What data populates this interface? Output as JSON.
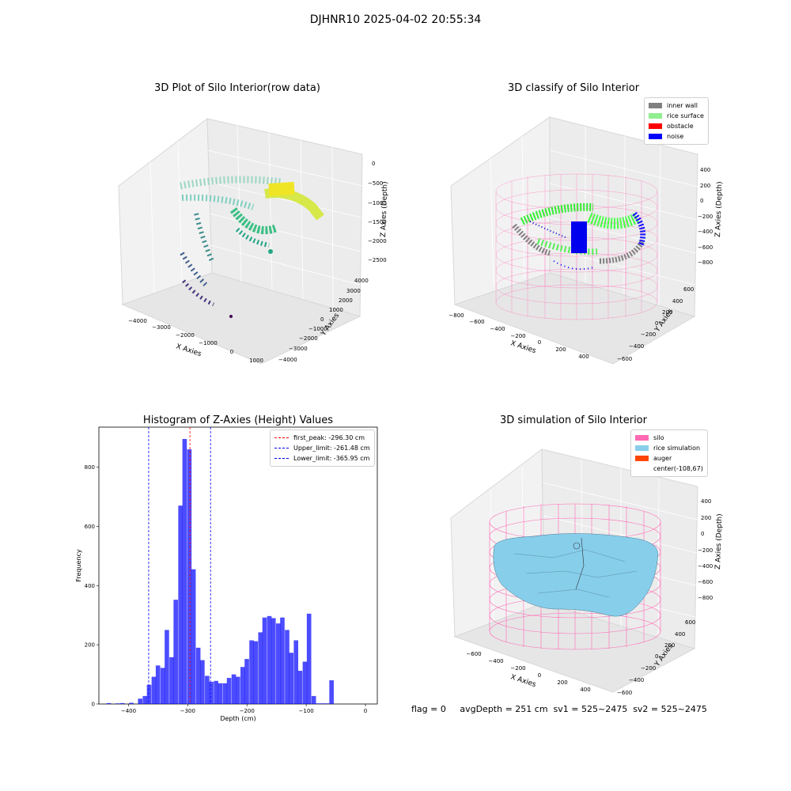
{
  "figure": {
    "title": "DJHNR10 2025-04-02 20:55:34"
  },
  "panel1": {
    "title": "3D Plot of Silo Interior(row data)",
    "xlabel": "X Axies",
    "ylabel": "Y Axies",
    "zlabel": "Z Axies (Depth)",
    "xticks": [
      "−4000",
      "−3000",
      "−2000",
      "−1000",
      "0",
      "1000"
    ],
    "yticks": [
      "4000",
      "3000",
      "2000",
      "1000",
      "0",
      "−1000",
      "−2000",
      "−3000",
      "−4000"
    ],
    "zticks": [
      "0",
      "−500",
      "−1000",
      "−1500",
      "−2000",
      "−2500"
    ]
  },
  "panel2": {
    "title": "3D classify of Silo Interior",
    "xlabel": "X Axies",
    "ylabel": "Y Axies",
    "zlabel": "Z Axies (Depth)",
    "xticks": [
      "−800",
      "−600",
      "−400",
      "−200",
      "0",
      "200",
      "400"
    ],
    "yticks": [
      "600",
      "400",
      "200",
      "0",
      "−200",
      "−400",
      "−600"
    ],
    "zticks": [
      "400",
      "200",
      "0",
      "−200",
      "−400",
      "−600",
      "−800"
    ],
    "legend": [
      {
        "label": "inner wall",
        "color": "#808080"
      },
      {
        "label": "rice surface",
        "color": "#90ee90"
      },
      {
        "label": "obstacle",
        "color": "#ff0000"
      },
      {
        "label": "noise",
        "color": "#0000ff"
      }
    ]
  },
  "panel4": {
    "title": "3D simulation of Silo Interior",
    "xlabel": "X Axies",
    "ylabel": "Y Axies",
    "zlabel": "Z Axies (Depth)",
    "xticks": [
      "−600",
      "−400",
      "−200",
      "0",
      "200",
      "400"
    ],
    "yticks": [
      "600",
      "400",
      "200",
      "0",
      "−200",
      "−400",
      "−600"
    ],
    "zticks": [
      "400",
      "200",
      "0",
      "−200",
      "−400",
      "−600",
      "−800"
    ],
    "legend": [
      {
        "label": "silo",
        "color": "#ff69b4"
      },
      {
        "label": "rice simulation",
        "color": "#87ceeb"
      },
      {
        "label": "auger",
        "color": "#ff4500"
      },
      {
        "label": "center(-108,67)",
        "color": "none"
      }
    ]
  },
  "info": {
    "text": "flag = 0     avgDepth = 251 cm  sv1 = 525~2475  sv2 = 525~2475"
  },
  "colors": {
    "hist": "#0000ff",
    "peak": "#ff0000",
    "limit": "#0000ff",
    "silo": "#ff69b4",
    "rice": "#87ceeb"
  },
  "chart_data": {
    "type": "bar",
    "title": "Histogram of Z-Axies (Height) Values",
    "xlabel": "Depth (cm)",
    "ylabel": "Frequency",
    "xlim": [
      -450,
      20
    ],
    "ylim": [
      0,
      935
    ],
    "xticks": [
      -400,
      -300,
      -200,
      -100,
      0
    ],
    "yticks": [
      0,
      200,
      400,
      600,
      800
    ],
    "bin_width": 7.5,
    "bins": [
      [
        -437,
        3
      ],
      [
        -422,
        2
      ],
      [
        -414,
        3
      ],
      [
        -399,
        4
      ],
      [
        -384,
        18
      ],
      [
        -376,
        27
      ],
      [
        -369,
        65
      ],
      [
        -361,
        92
      ],
      [
        -354,
        130
      ],
      [
        -346,
        122
      ],
      [
        -339,
        250
      ],
      [
        -331,
        158
      ],
      [
        -324,
        352
      ],
      [
        -316,
        670
      ],
      [
        -309,
        895
      ],
      [
        -301,
        860
      ],
      [
        -294,
        455
      ],
      [
        -286,
        190
      ],
      [
        -279,
        148
      ],
      [
        -271,
        95
      ],
      [
        -264,
        75
      ],
      [
        -256,
        78
      ],
      [
        -249,
        70
      ],
      [
        -241,
        70
      ],
      [
        -234,
        88
      ],
      [
        -226,
        100
      ],
      [
        -219,
        92
      ],
      [
        -211,
        125
      ],
      [
        -204,
        152
      ],
      [
        -196,
        215
      ],
      [
        -189,
        212
      ],
      [
        -181,
        242
      ],
      [
        -174,
        292
      ],
      [
        -166,
        297
      ],
      [
        -159,
        290
      ],
      [
        -151,
        272
      ],
      [
        -144,
        292
      ],
      [
        -136,
        250
      ],
      [
        -129,
        173
      ],
      [
        -121,
        215
      ],
      [
        -114,
        112
      ],
      [
        -106,
        143
      ],
      [
        -99,
        305
      ],
      [
        -91,
        27
      ],
      [
        -84,
        2
      ],
      [
        -76,
        2
      ],
      [
        -69,
        2
      ],
      [
        -61,
        80
      ]
    ],
    "vlines": [
      {
        "label": "first_peak: -296.30 cm",
        "x": -296.3,
        "color": "#ff0000"
      },
      {
        "label": "Upper_limit: -261.48 cm",
        "x": -261.48,
        "color": "#0000ff"
      },
      {
        "label": "Lower_limit: -365.95 cm",
        "x": -365.95,
        "color": "#0000ff"
      }
    ]
  }
}
